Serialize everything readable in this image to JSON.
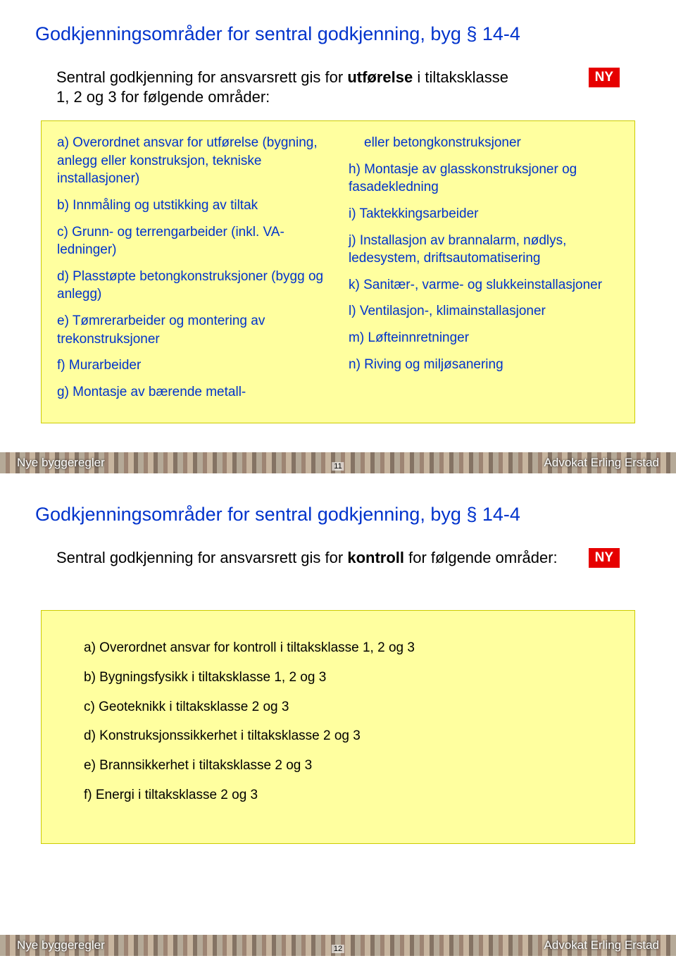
{
  "slide1": {
    "title": "Godkjenningsområder for sentral godkjenning, byg § 14-4",
    "intro_pre": "Sentral godkjenning for ansvarsrett gis for ",
    "intro_bold": "utførelse",
    "intro_post1": " i tiltaksklasse",
    "intro_line2": "1, 2 og 3 for følgende områder:",
    "badge": "NY",
    "left": {
      "a": "a) Overordnet ansvar for utførelse (bygning, anlegg eller konstruksjon, tekniske installasjoner)",
      "b": "b) Innmåling og utstikking av tiltak",
      "c": "c) Grunn- og terrengarbeider (inkl. VA-ledninger)",
      "d": "d) Plasstøpte betongkonstruksjoner (bygg og anlegg)",
      "e": "e) Tømrerarbeider og montering av trekonstruksjoner",
      "f": "f) Murarbeider",
      "g": "g)  Montasje av bærende metall-"
    },
    "right": {
      "g2": "eller betongkonstruksjoner",
      "h": "h)  Montasje av glasskonstruksjoner og fasadekledning",
      "i": "i)   Taktekkingsarbeider",
      "j": "j)   Installasjon av brannalarm, nødlys, ledesystem, driftsautomatisering",
      "k": "k)  Sanitær-, varme- og slukkeinstallasjoner",
      "l": "l)   Ventilasjon-, klimainstallasjoner",
      "m": "m) Løfteinnretninger",
      "n": "n)  Riving og miljøsanering"
    },
    "footer_left": "Nye byggeregler",
    "footer_right": "Advokat Erling Erstad",
    "page_num": "11"
  },
  "slide2": {
    "title": "Godkjenningsområder for sentral godkjenning, byg § 14-4",
    "intro_pre": "Sentral godkjenning for ansvarsrett gis for ",
    "intro_bold": "kontroll",
    "intro_post": " for følgende områder:",
    "badge": "NY",
    "items": {
      "a": "a)  Overordnet ansvar for kontroll i tiltaksklasse 1, 2 og 3",
      "b": "b)  Bygningsfysikk i tiltaksklasse 1, 2 og 3",
      "c": "c)  Geoteknikk i tiltaksklasse 2 og 3",
      "d": "d)  Konstruksjonssikkerhet i tiltaksklasse 2 og 3",
      "e": "e)  Brannsikkerhet i tiltaksklasse 2 og 3",
      "f": "f)   Energi i tiltaksklasse 2 og 3"
    },
    "footer_left": "Nye byggeregler",
    "footer_right": "Advokat Erling Erstad",
    "page_num": "12"
  },
  "colors": {
    "title_color": "#0033cc",
    "body_text": "#000000",
    "box_bg": "#ffff9f",
    "box_text": "#0033cc",
    "badge_bg": "#e60000",
    "badge_text": "#ffffff",
    "page_bg": "#ffffff"
  },
  "fonts": {
    "title_size_pt": 20,
    "intro_size_pt": 16,
    "list_size_pt": 14,
    "footer_size_pt": 13
  }
}
